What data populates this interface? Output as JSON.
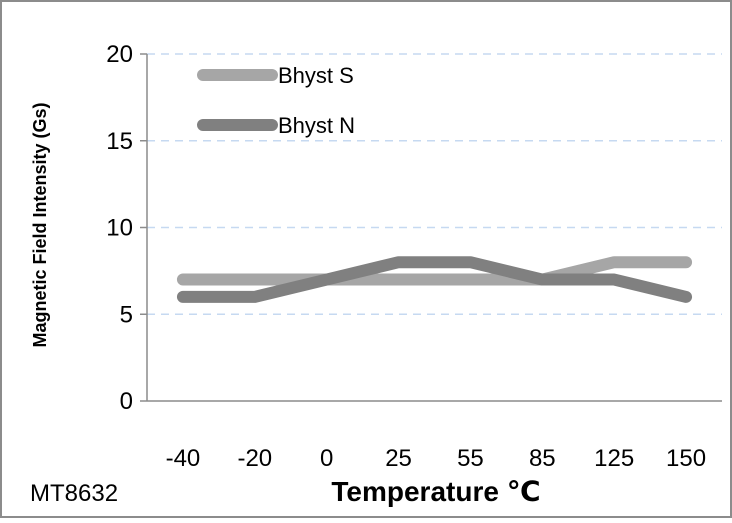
{
  "chart_data": {
    "type": "line",
    "title": "",
    "xlabel": "Temperature ℃",
    "ylabel": "Magnetic Field Intensity (Gs)",
    "categories": [
      "-40",
      "-20",
      "0",
      "25",
      "55",
      "85",
      "125",
      "150"
    ],
    "ylim": [
      0,
      20
    ],
    "yticks": [
      "0",
      "5",
      "10",
      "15",
      "20"
    ],
    "grid": true,
    "legend_position": "top-left",
    "series": [
      {
        "name": "Bhyst S",
        "values": [
          7,
          7,
          7,
          7,
          7,
          7,
          8,
          8
        ],
        "color": "#a6a6a6"
      },
      {
        "name": "Bhyst N",
        "values": [
          6,
          6,
          7,
          8,
          8,
          7,
          7,
          6
        ],
        "color": "#808080"
      }
    ],
    "gridline_color": "#c6d9f1"
  },
  "footer": {
    "label": "MT8632"
  }
}
